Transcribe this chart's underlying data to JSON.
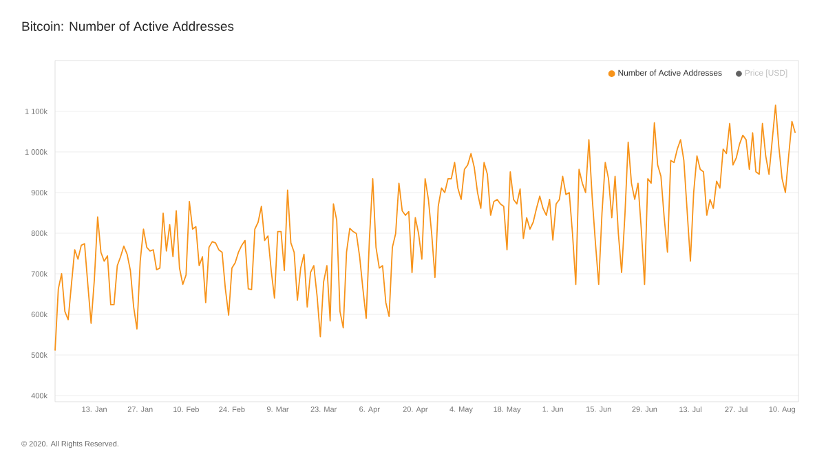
{
  "chart_data": {
    "type": "line",
    "title": "Bitcoin: Number of Active Addresses",
    "xlim": [
      "2020-01-01",
      "2020-08-15"
    ],
    "xticks": [
      {
        "value": "2020-01-13",
        "label": "13. Jan"
      },
      {
        "value": "2020-01-27",
        "label": "27. Jan"
      },
      {
        "value": "2020-02-10",
        "label": "10. Feb"
      },
      {
        "value": "2020-02-24",
        "label": "24. Feb"
      },
      {
        "value": "2020-03-09",
        "label": "9. Mar"
      },
      {
        "value": "2020-03-23",
        "label": "23. Mar"
      },
      {
        "value": "2020-04-06",
        "label": "6. Apr"
      },
      {
        "value": "2020-04-20",
        "label": "20. Apr"
      },
      {
        "value": "2020-05-04",
        "label": "4. May"
      },
      {
        "value": "2020-05-18",
        "label": "18. May"
      },
      {
        "value": "2020-06-01",
        "label": "1. Jun"
      },
      {
        "value": "2020-06-15",
        "label": "15. Jun"
      },
      {
        "value": "2020-06-29",
        "label": "29. Jun"
      },
      {
        "value": "2020-07-13",
        "label": "13. Jul"
      },
      {
        "value": "2020-07-27",
        "label": "27. Jul"
      },
      {
        "value": "2020-08-10",
        "label": "10. Aug"
      }
    ],
    "ylim": [
      385000,
      1225000
    ],
    "yticks": [
      {
        "value": 400000,
        "label": "400k"
      },
      {
        "value": 500000,
        "label": "500k"
      },
      {
        "value": 600000,
        "label": "600k"
      },
      {
        "value": 700000,
        "label": "700k"
      },
      {
        "value": 800000,
        "label": "800k"
      },
      {
        "value": 900000,
        "label": "900k"
      },
      {
        "value": 1000000,
        "label": "1 000k"
      },
      {
        "value": 1100000,
        "label": "1 100k"
      }
    ],
    "grid": "y",
    "legend": "top right",
    "annotations": [
      "© 2020. All Rights Reserved."
    ],
    "series": [
      {
        "name": "Number of Active Addresses",
        "color": "#f7931a",
        "x": [
          "2020-01-01",
          "2020-01-02",
          "2020-01-03",
          "2020-01-04",
          "2020-01-05",
          "2020-01-06",
          "2020-01-07",
          "2020-01-08",
          "2020-01-09",
          "2020-01-10",
          "2020-01-11",
          "2020-01-12",
          "2020-01-13",
          "2020-01-14",
          "2020-01-15",
          "2020-01-16",
          "2020-01-17",
          "2020-01-18",
          "2020-01-19",
          "2020-01-20",
          "2020-01-21",
          "2020-01-22",
          "2020-01-23",
          "2020-01-24",
          "2020-01-25",
          "2020-01-26",
          "2020-01-27",
          "2020-01-28",
          "2020-01-29",
          "2020-01-30",
          "2020-01-31",
          "2020-02-01",
          "2020-02-02",
          "2020-02-03",
          "2020-02-04",
          "2020-02-05",
          "2020-02-06",
          "2020-02-07",
          "2020-02-08",
          "2020-02-09",
          "2020-02-10",
          "2020-02-11",
          "2020-02-12",
          "2020-02-13",
          "2020-02-14",
          "2020-02-15",
          "2020-02-16",
          "2020-02-17",
          "2020-02-18",
          "2020-02-19",
          "2020-02-20",
          "2020-02-21",
          "2020-02-22",
          "2020-02-23",
          "2020-02-24",
          "2020-02-25",
          "2020-02-26",
          "2020-02-27",
          "2020-02-28",
          "2020-02-29",
          "2020-03-01",
          "2020-03-02",
          "2020-03-03",
          "2020-03-04",
          "2020-03-05",
          "2020-03-06",
          "2020-03-07",
          "2020-03-08",
          "2020-03-09",
          "2020-03-10",
          "2020-03-11",
          "2020-03-12",
          "2020-03-13",
          "2020-03-14",
          "2020-03-15",
          "2020-03-16",
          "2020-03-17",
          "2020-03-18",
          "2020-03-19",
          "2020-03-20",
          "2020-03-21",
          "2020-03-22",
          "2020-03-23",
          "2020-03-24",
          "2020-03-25",
          "2020-03-26",
          "2020-03-27",
          "2020-03-28",
          "2020-03-29",
          "2020-03-30",
          "2020-03-31",
          "2020-04-01",
          "2020-04-02",
          "2020-04-03",
          "2020-04-04",
          "2020-04-05",
          "2020-04-06",
          "2020-04-07",
          "2020-04-08",
          "2020-04-09",
          "2020-04-10",
          "2020-04-11",
          "2020-04-12",
          "2020-04-13",
          "2020-04-14",
          "2020-04-15",
          "2020-04-16",
          "2020-04-17",
          "2020-04-18",
          "2020-04-19",
          "2020-04-20",
          "2020-04-21",
          "2020-04-22",
          "2020-04-23",
          "2020-04-24",
          "2020-04-25",
          "2020-04-26",
          "2020-04-27",
          "2020-04-28",
          "2020-04-29",
          "2020-04-30",
          "2020-05-01",
          "2020-05-02",
          "2020-05-03",
          "2020-05-04",
          "2020-05-05",
          "2020-05-06",
          "2020-05-07",
          "2020-05-08",
          "2020-05-09",
          "2020-05-10",
          "2020-05-11",
          "2020-05-12",
          "2020-05-13",
          "2020-05-14",
          "2020-05-15",
          "2020-05-16",
          "2020-05-17",
          "2020-05-18",
          "2020-05-19",
          "2020-05-20",
          "2020-05-21",
          "2020-05-22",
          "2020-05-23",
          "2020-05-24",
          "2020-05-25",
          "2020-05-26",
          "2020-05-27",
          "2020-05-28",
          "2020-05-29",
          "2020-05-30",
          "2020-05-31",
          "2020-06-01",
          "2020-06-02",
          "2020-06-03",
          "2020-06-04",
          "2020-06-05",
          "2020-06-06",
          "2020-06-07",
          "2020-06-08",
          "2020-06-09",
          "2020-06-10",
          "2020-06-11",
          "2020-06-12",
          "2020-06-13",
          "2020-06-14",
          "2020-06-15",
          "2020-06-16",
          "2020-06-17",
          "2020-06-18",
          "2020-06-19",
          "2020-06-20",
          "2020-06-21",
          "2020-06-22",
          "2020-06-23",
          "2020-06-24",
          "2020-06-25",
          "2020-06-26",
          "2020-06-27",
          "2020-06-28",
          "2020-06-29",
          "2020-06-30",
          "2020-07-01",
          "2020-07-02",
          "2020-07-03",
          "2020-07-04",
          "2020-07-05",
          "2020-07-06",
          "2020-07-07",
          "2020-07-08",
          "2020-07-09",
          "2020-07-10",
          "2020-07-11",
          "2020-07-12",
          "2020-07-13",
          "2020-07-14",
          "2020-07-15",
          "2020-07-16",
          "2020-07-17",
          "2020-07-18",
          "2020-07-19",
          "2020-07-20",
          "2020-07-21",
          "2020-07-22",
          "2020-07-23",
          "2020-07-24",
          "2020-07-25",
          "2020-07-26",
          "2020-07-27",
          "2020-07-28",
          "2020-07-29",
          "2020-07-30",
          "2020-07-31",
          "2020-08-01",
          "2020-08-02",
          "2020-08-03",
          "2020-08-04",
          "2020-08-05",
          "2020-08-06",
          "2020-08-07",
          "2020-08-08",
          "2020-08-09",
          "2020-08-10",
          "2020-08-11",
          "2020-08-12",
          "2020-08-13",
          "2020-08-14"
        ],
        "values": [
          511000,
          663000,
          700000,
          607000,
          587000,
          674000,
          759000,
          736000,
          770000,
          774000,
          674000,
          578000,
          686000,
          840000,
          753000,
          731000,
          744000,
          624000,
          624000,
          720000,
          742000,
          768000,
          748000,
          708000,
          618000,
          564000,
          731000,
          810000,
          765000,
          756000,
          759000,
          710000,
          714000,
          849000,
          756000,
          821000,
          742000,
          855000,
          714000,
          674000,
          697000,
          878000,
          810000,
          816000,
          720000,
          742000,
          629000,
          765000,
          779000,
          776000,
          759000,
          753000,
          663000,
          598000,
          714000,
          727000,
          753000,
          770000,
          782000,
          663000,
          661000,
          810000,
          827000,
          866000,
          782000,
          793000,
          708000,
          640000,
          804000,
          804000,
          708000,
          906000,
          776000,
          753000,
          635000,
          714000,
          748000,
          618000,
          703000,
          720000,
          646000,
          545000,
          680000,
          720000,
          584000,
          872000,
          832000,
          607000,
          567000,
          753000,
          812000,
          804000,
          799000,
          742000,
          663000,
          590000,
          787000,
          934000,
          765000,
          714000,
          720000,
          629000,
          595000,
          765000,
          799000,
          923000,
          855000,
          844000,
          853000,
          703000,
          838000,
          799000,
          736000,
          934000,
          883000,
          799000,
          691000,
          866000,
          911000,
          900000,
          934000,
          934000,
          974000,
          911000,
          883000,
          957000,
          968000,
          996000,
          962000,
          900000,
          861000,
          974000,
          945000,
          844000,
          878000,
          883000,
          872000,
          866000,
          759000,
          951000,
          883000,
          872000,
          909000,
          787000,
          838000,
          810000,
          827000,
          861000,
          891000,
          861000,
          844000,
          883000,
          783000,
          872000,
          883000,
          940000,
          895000,
          900000,
          799000,
          674000,
          957000,
          923000,
          900000,
          1030000,
          889000,
          776000,
          674000,
          849000,
          974000,
          934000,
          838000,
          940000,
          799000,
          703000,
          844000,
          1024000,
          923000,
          883000,
          923000,
          810000,
          674000,
          934000,
          923000,
          1072000,
          968000,
          940000,
          838000,
          753000,
          979000,
          974000,
          1007000,
          1030000,
          979000,
          855000,
          731000,
          900000,
          990000,
          957000,
          951000,
          844000,
          883000,
          861000,
          928000,
          911000,
          1007000,
          996000,
          1070000,
          968000,
          985000,
          1019000,
          1041000,
          1030000,
          957000,
          1047000,
          951000,
          945000,
          1070000,
          990000,
          945000,
          1030000,
          1115000,
          1013000,
          934000,
          900000,
          990000,
          1075000,
          1047000
        ]
      },
      {
        "name": "Price [USD]",
        "color": "#616161"
      }
    ]
  }
}
